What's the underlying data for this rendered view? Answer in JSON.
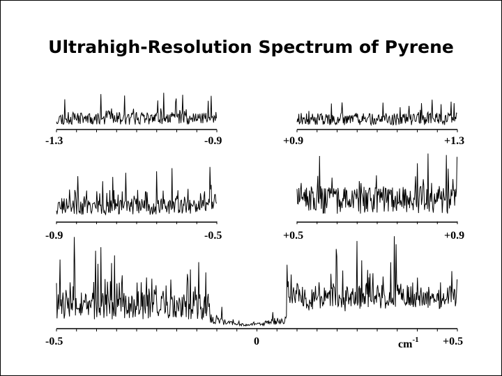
{
  "slide": {
    "title": "Ultrahigh-Resolution Spectrum of Pyrene"
  },
  "colors": {
    "trace": "#000000",
    "axis": "#000000",
    "background": "#ffffff"
  },
  "chart_data": [
    {
      "type": "line",
      "panel": "top-left",
      "xlim": [
        -1.3,
        -0.9
      ],
      "tick_labels": [
        "-1.3",
        "-0.9"
      ],
      "unit_label": "",
      "description_of_signal": "dense spectral lines, moderate amplitude",
      "grid": false
    },
    {
      "type": "line",
      "panel": "top-right",
      "xlim": [
        0.9,
        1.3
      ],
      "tick_labels": [
        "+0.9",
        "+1.3"
      ],
      "unit_label": "",
      "grid": false
    },
    {
      "type": "line",
      "panel": "middle-left",
      "xlim": [
        -0.9,
        -0.5
      ],
      "tick_labels": [
        "-0.9",
        "-0.5"
      ],
      "unit_label": "",
      "grid": false
    },
    {
      "type": "line",
      "panel": "middle-right",
      "xlim": [
        0.5,
        0.9
      ],
      "tick_labels": [
        "+0.5",
        "+0.9"
      ],
      "unit_label": "",
      "grid": false
    },
    {
      "type": "line",
      "panel": "bottom",
      "xlim": [
        -0.5,
        0.5
      ],
      "tick_labels": [
        "-0.5",
        "0",
        "+0.5"
      ],
      "unit_label": "cm",
      "unit_exponent": "-1",
      "grid": false
    }
  ]
}
